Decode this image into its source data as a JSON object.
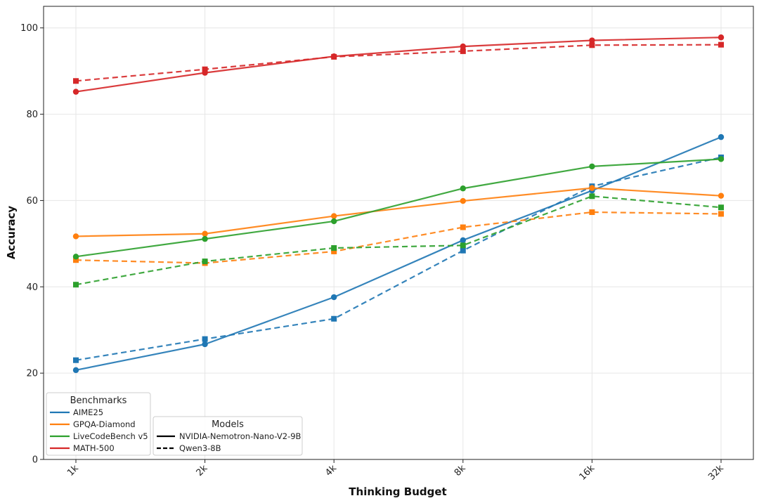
{
  "chart_data": {
    "type": "line",
    "title": "",
    "xlabel": "Thinking Budget",
    "ylabel": "Accuracy",
    "categories": [
      "1k",
      "2k",
      "4k",
      "8k",
      "16k",
      "32k"
    ],
    "ylim": [
      0,
      105
    ],
    "yticks": [
      0,
      20,
      40,
      60,
      80,
      100
    ],
    "grid": true,
    "series": [
      {
        "benchmark": "AIME25",
        "model": "NVIDIA-Nemotron-Nano-V2-9B",
        "color": "#1f77b4",
        "style": "solid",
        "marker": "circle",
        "values": [
          20.7,
          26.7,
          37.6,
          50.8,
          62.3,
          74.7
        ]
      },
      {
        "benchmark": "AIME25",
        "model": "Qwen3-8B",
        "color": "#1f77b4",
        "style": "dashed",
        "marker": "square",
        "values": [
          23.0,
          27.9,
          32.6,
          48.4,
          63.3,
          70.0
        ]
      },
      {
        "benchmark": "GPQA-Diamond",
        "model": "NVIDIA-Nemotron-Nano-V2-9B",
        "color": "#ff7f0e",
        "style": "solid",
        "marker": "circle",
        "values": [
          51.7,
          52.3,
          56.4,
          59.9,
          62.9,
          61.1
        ]
      },
      {
        "benchmark": "GPQA-Diamond",
        "model": "Qwen3-8B",
        "color": "#ff7f0e",
        "style": "dashed",
        "marker": "square",
        "values": [
          46.2,
          45.5,
          48.2,
          53.8,
          57.3,
          56.9
        ]
      },
      {
        "benchmark": "LiveCodeBench v5",
        "model": "NVIDIA-Nemotron-Nano-V2-9B",
        "color": "#2ca02c",
        "style": "solid",
        "marker": "circle",
        "values": [
          47.0,
          51.1,
          55.2,
          62.8,
          67.9,
          69.6
        ]
      },
      {
        "benchmark": "LiveCodeBench v5",
        "model": "Qwen3-8B",
        "color": "#2ca02c",
        "style": "dashed",
        "marker": "square",
        "values": [
          40.5,
          45.9,
          49.0,
          49.6,
          61.0,
          58.4
        ]
      },
      {
        "benchmark": "MATH-500",
        "model": "NVIDIA-Nemotron-Nano-V2-9B",
        "color": "#d62728",
        "style": "solid",
        "marker": "circle",
        "values": [
          85.2,
          89.6,
          93.4,
          95.7,
          97.1,
          97.8
        ]
      },
      {
        "benchmark": "MATH-500",
        "model": "Qwen3-8B",
        "color": "#d62728",
        "style": "dashed",
        "marker": "square",
        "values": [
          87.7,
          90.4,
          93.3,
          94.6,
          96.0,
          96.1
        ]
      }
    ],
    "legends": [
      {
        "title": "Benchmarks",
        "placement": "lower-left",
        "entries": [
          {
            "label": "AIME25",
            "color": "#1f77b4",
            "style": "solid"
          },
          {
            "label": "GPQA-Diamond",
            "color": "#ff7f0e",
            "style": "solid"
          },
          {
            "label": "LiveCodeBench v5",
            "color": "#2ca02c",
            "style": "solid"
          },
          {
            "label": "MATH-500",
            "color": "#d62728",
            "style": "solid"
          }
        ]
      },
      {
        "title": "Models",
        "placement": "lower-left",
        "entries": [
          {
            "label": "NVIDIA-Nemotron-Nano-V2-9B",
            "color": "#000000",
            "style": "solid"
          },
          {
            "label": "Qwen3-8B",
            "color": "#000000",
            "style": "dashed"
          }
        ]
      }
    ]
  }
}
